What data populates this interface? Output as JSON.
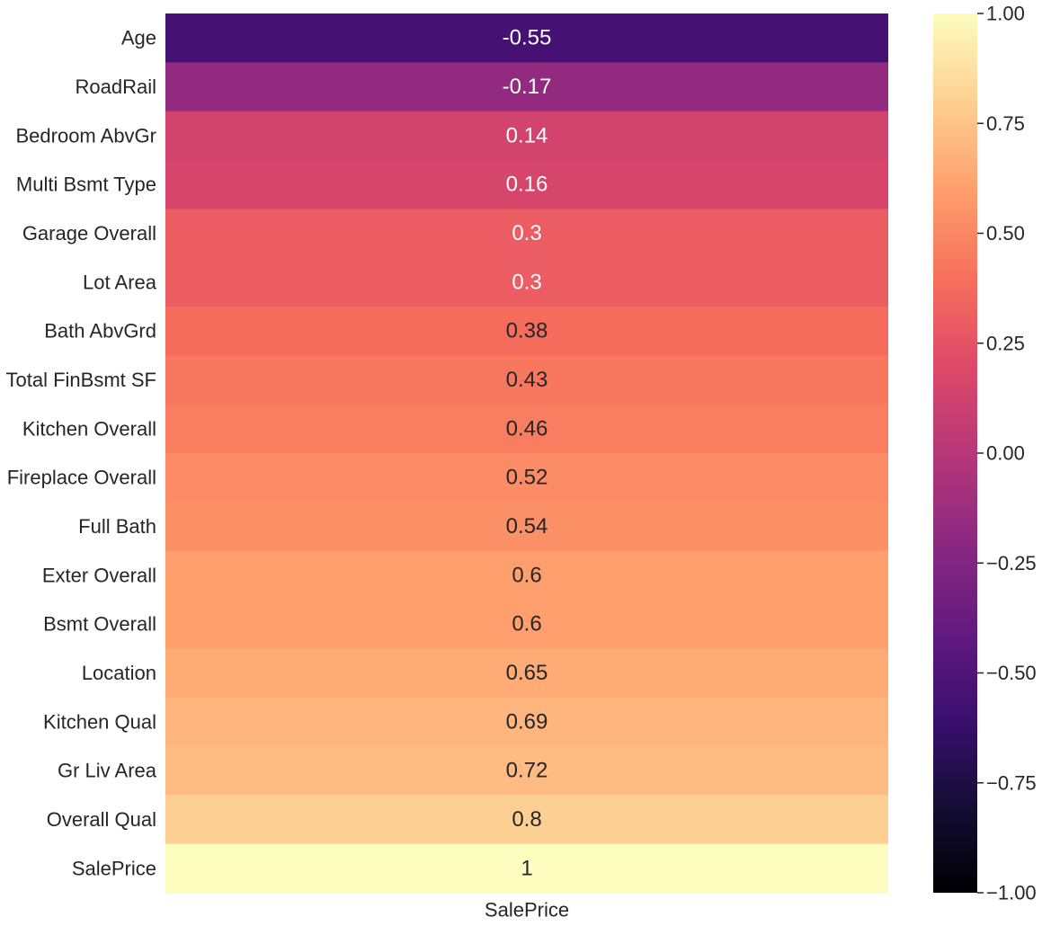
{
  "chart_data": {
    "type": "heatmap",
    "title": "",
    "xlabel": "",
    "ylabel": "",
    "columns": [
      "SalePrice"
    ],
    "rows": [
      "Age",
      "RoadRail",
      "Bedroom AbvGr",
      "Multi Bsmt Type",
      "Garage Overall",
      "Lot Area",
      "Bath AbvGrd",
      "Total FinBsmt SF",
      "Kitchen Overall",
      "Fireplace Overall",
      "Full Bath",
      "Exter Overall",
      "Bsmt Overall",
      "Location",
      "Kitchen Qual",
      "Gr Liv Area",
      "Overall Qual",
      "SalePrice"
    ],
    "values": [
      -0.55,
      -0.17,
      0.14,
      0.16,
      0.3,
      0.3,
      0.38,
      0.43,
      0.46,
      0.52,
      0.54,
      0.6,
      0.6,
      0.65,
      0.69,
      0.72,
      0.8,
      1
    ],
    "annotations": [
      "-0.55",
      "-0.17",
      "0.14",
      "0.16",
      "0.3",
      "0.3",
      "0.38",
      "0.43",
      "0.46",
      "0.52",
      "0.54",
      "0.6",
      "0.6",
      "0.65",
      "0.69",
      "0.72",
      "0.8",
      "1"
    ],
    "colormap": "magma",
    "vmin": -1,
    "vmax": 1,
    "colorbar": {
      "ticks": [
        1.0,
        0.75,
        0.5,
        0.25,
        0.0,
        -0.25,
        -0.5,
        -0.75,
        -1.0
      ],
      "tick_labels": [
        "1.00",
        "0.75",
        "0.50",
        "0.25",
        "0.00",
        "−0.25",
        "−0.50",
        "−0.75",
        "−1.00"
      ]
    },
    "grid": false,
    "legend": "colorbar-right"
  }
}
